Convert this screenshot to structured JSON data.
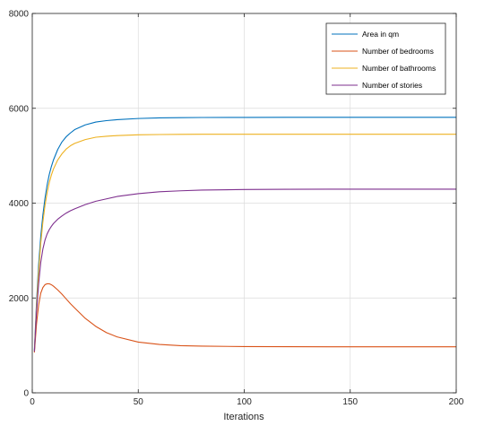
{
  "chart_data": {
    "type": "line",
    "title": "",
    "xlabel": "Iterations",
    "ylabel": "",
    "xlim": [
      0,
      200
    ],
    "ylim": [
      0,
      8000
    ],
    "xticks": [
      0,
      50,
      100,
      150,
      200
    ],
    "yticks": [
      0,
      2000,
      4000,
      6000,
      8000
    ],
    "grid": true,
    "legend_position": "top-right",
    "x": [
      1,
      2,
      3,
      4,
      5,
      6,
      7,
      8,
      9,
      10,
      12,
      14,
      16,
      18,
      20,
      25,
      30,
      35,
      40,
      50,
      60,
      70,
      80,
      100,
      120,
      140,
      160,
      180,
      200
    ],
    "series": [
      {
        "name": "Area in qm",
        "color": "#0072bd",
        "values": [
          900,
          1900,
          2700,
          3300,
          3750,
          4100,
          4380,
          4600,
          4770,
          4910,
          5130,
          5290,
          5400,
          5480,
          5550,
          5650,
          5710,
          5740,
          5760,
          5785,
          5797,
          5803,
          5806,
          5808,
          5809,
          5810,
          5810,
          5810,
          5810
        ]
      },
      {
        "name": "Number of bedrooms",
        "color": "#d95319",
        "values": [
          850,
          1450,
          1850,
          2100,
          2220,
          2280,
          2300,
          2300,
          2280,
          2250,
          2170,
          2080,
          1980,
          1880,
          1790,
          1570,
          1400,
          1270,
          1180,
          1070,
          1020,
          995,
          985,
          975,
          972,
          970,
          970,
          970,
          970
        ]
      },
      {
        "name": "Number of bathrooms",
        "color": "#edb120",
        "values": [
          880,
          1800,
          2550,
          3150,
          3600,
          3950,
          4220,
          4430,
          4590,
          4720,
          4910,
          5040,
          5140,
          5210,
          5260,
          5340,
          5390,
          5410,
          5425,
          5440,
          5447,
          5450,
          5452,
          5453,
          5453,
          5453,
          5453,
          5453,
          5453
        ]
      },
      {
        "name": "Number of stories",
        "color": "#7e2f8e",
        "values": [
          870,
          1700,
          2300,
          2750,
          3030,
          3220,
          3350,
          3440,
          3510,
          3570,
          3660,
          3730,
          3790,
          3840,
          3880,
          3970,
          4040,
          4090,
          4140,
          4200,
          4240,
          4260,
          4275,
          4288,
          4292,
          4294,
          4295,
          4295,
          4295
        ]
      }
    ]
  }
}
